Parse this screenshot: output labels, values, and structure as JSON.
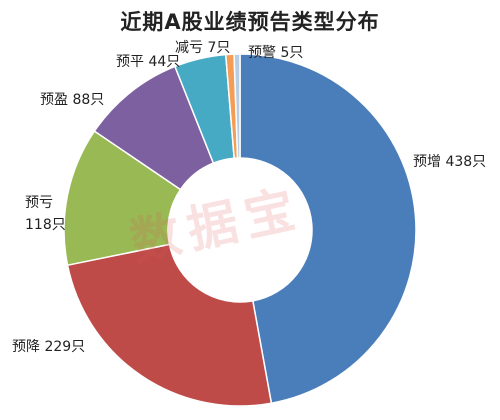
{
  "chart_data": {
    "type": "pie",
    "variant": "donut",
    "title": "近期A股业绩预告类型分布",
    "slices": [
      {
        "label": "预增",
        "value": 438,
        "value_text": "438只",
        "color": "#4a7ebb"
      },
      {
        "label": "预降",
        "value": 229,
        "value_text": "229只",
        "color": "#be4b48"
      },
      {
        "label": "预亏",
        "value": 118,
        "value_text": "118只",
        "color": "#98b954"
      },
      {
        "label": "预盈",
        "value": 88,
        "value_text": "88只",
        "color": "#7d60a0"
      },
      {
        "label": "预平",
        "value": 44,
        "value_text": "44只",
        "color": "#46aac4"
      },
      {
        "label": "减亏",
        "value": 7,
        "value_text": "7只",
        "color": "#f59d56"
      },
      {
        "label": "预警",
        "value": 5,
        "value_text": "5只",
        "color": "#b9cde5"
      }
    ],
    "watermark": "数据宝"
  }
}
